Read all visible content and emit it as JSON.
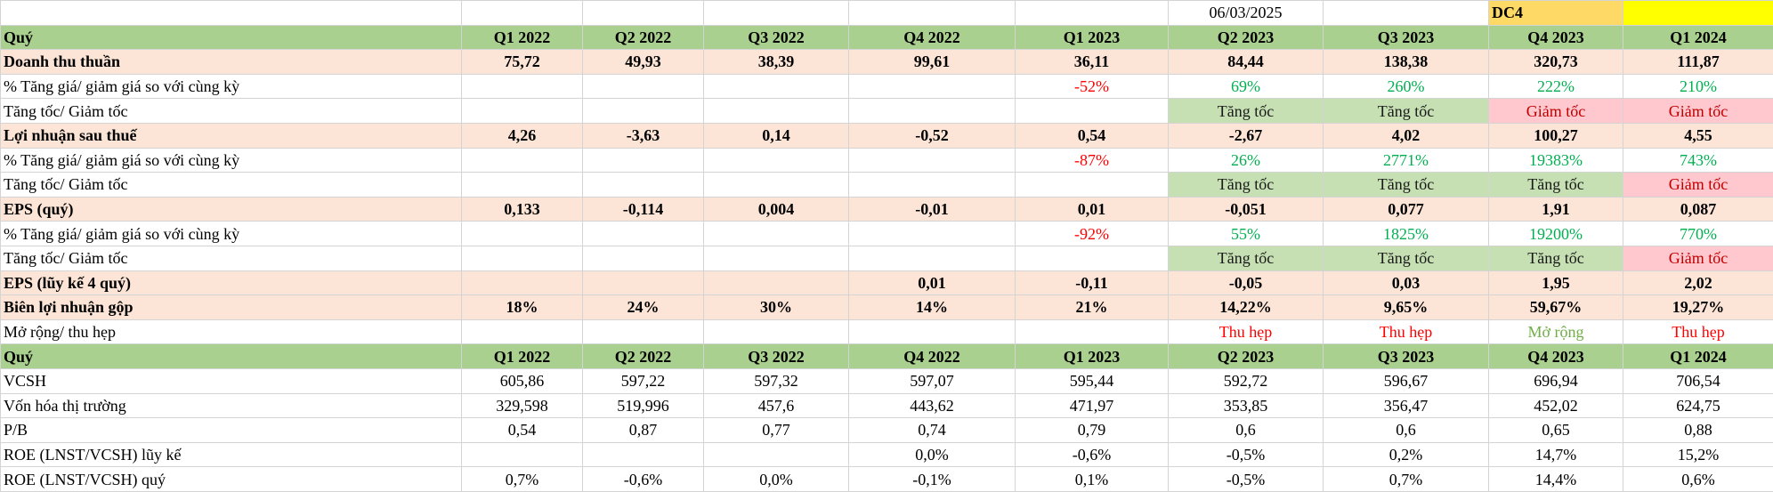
{
  "top": {
    "date": "06/03/2025",
    "tag": "DC4"
  },
  "table": {
    "rows": [
      [
        "Quý",
        "Q1 2022",
        "Q2 2022",
        "Q3 2022",
        "Q4 2022",
        "Q1 2023",
        "Q2 2023",
        "Q3 2023",
        "Q4 2023",
        "Q1 2024"
      ],
      [
        "Doanh thu thuần",
        "75,72",
        "49,93",
        "38,39",
        "99,61",
        "36,11",
        "84,44",
        "138,38",
        "320,73",
        "111,87"
      ],
      [
        "% Tăng giá/ giảm giá so với cùng kỳ",
        null,
        null,
        null,
        null,
        "-52%",
        "69%",
        "260%",
        "222%",
        "210%"
      ],
      [
        "Tăng tốc/ Giảm tốc",
        null,
        null,
        null,
        null,
        null,
        "Tăng tốc",
        "Tăng tốc",
        "Giảm tốc",
        "Giảm tốc"
      ],
      [
        "Lợi nhuận sau thuế",
        "4,26",
        "-3,63",
        "0,14",
        "-0,52",
        "0,54",
        "-2,67",
        "4,02",
        "100,27",
        "4,55"
      ],
      [
        "% Tăng giá/ giảm giá so với cùng kỳ",
        null,
        null,
        null,
        null,
        "-87%",
        "26%",
        "2771%",
        "19383%",
        "743%"
      ],
      [
        "Tăng tốc/ Giảm tốc",
        null,
        null,
        null,
        null,
        null,
        "Tăng tốc",
        "Tăng tốc",
        "Tăng tốc",
        "Giảm tốc"
      ],
      [
        "EPS (quý)",
        "0,133",
        "-0,114",
        "0,004",
        "-0,01",
        "0,01",
        "-0,051",
        "0,077",
        "1,91",
        "0,087"
      ],
      [
        "% Tăng giá/ giảm giá so với cùng kỳ",
        null,
        null,
        null,
        null,
        "-92%",
        "55%",
        "1825%",
        "19200%",
        "770%"
      ],
      [
        "Tăng tốc/ Giảm tốc",
        null,
        null,
        null,
        null,
        null,
        "Tăng tốc",
        "Tăng tốc",
        "Tăng tốc",
        "Giảm tốc"
      ],
      [
        "EPS (lũy kế 4 quý)",
        null,
        null,
        null,
        "0,01",
        "-0,11",
        "-0,05",
        "0,03",
        "1,95",
        "2,02"
      ],
      [
        "Biên lợi nhuận gộp",
        "18%",
        "24%",
        "30%",
        "14%",
        "21%",
        "14,22%",
        "9,65%",
        "59,67%",
        "19,27%"
      ],
      [
        "Mở rộng/ thu hẹp",
        null,
        null,
        null,
        null,
        null,
        "Thu hẹp",
        "Thu hẹp",
        "Mở rộng",
        "Thu hẹp"
      ],
      [
        "Quý",
        "Q1 2022",
        "Q2 2022",
        "Q3 2022",
        "Q4 2022",
        "Q1 2023",
        "Q2 2023",
        "Q3 2023",
        "Q4 2023",
        "Q1 2024"
      ],
      [
        "VCSH",
        "605,86",
        "597,22",
        "597,32",
        "597,07",
        "595,44",
        "592,72",
        "596,67",
        "696,94",
        "706,54"
      ],
      [
        "Vốn hóa thị trường",
        "329,598",
        "519,996",
        "457,6",
        "443,62",
        "471,97",
        "353,85",
        "356,47",
        "452,02",
        "624,75"
      ],
      [
        "P/B",
        "0,54",
        "0,87",
        "0,77",
        "0,74",
        "0,79",
        "0,6",
        "0,6",
        "0,65",
        "0,88"
      ],
      [
        "ROE (LNST/VCSH) lũy kế",
        null,
        null,
        null,
        "0,0%",
        "-0,6%",
        "-0,5%",
        "0,2%",
        "14,7%",
        "15,2%"
      ],
      [
        "ROE (LNST/VCSH) quý",
        "0,7%",
        "-0,6%",
        "0,0%",
        "-0,1%",
        "0,1%",
        "-0,5%",
        "0,7%",
        "14,4%",
        "0,6%"
      ]
    ]
  }
}
